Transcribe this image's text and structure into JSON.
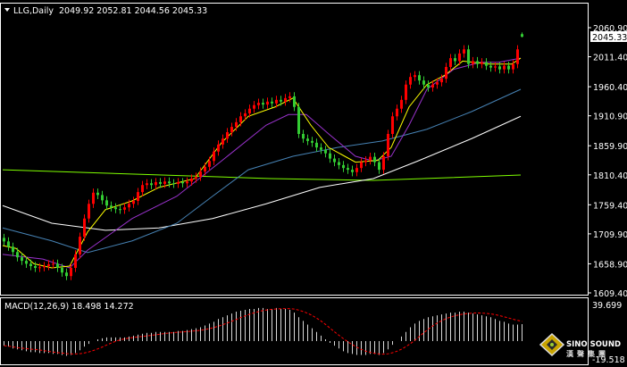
{
  "header": {
    "symbol_label": "LLG,Daily",
    "ohlc_text": "2049.92 2052.81 2044.56 2045.33"
  },
  "colors": {
    "background": "#000000",
    "bull_candle": "#ff0000",
    "bear_candle": "#33cc33",
    "frame": "#ffffff"
  },
  "chart_data": [
    {
      "type": "candlestick",
      "title": "LLG,Daily",
      "y_ticks": [
        "2060.90",
        "2011.40",
        "1960.40",
        "1910.90",
        "1859.90",
        "1810.40",
        "1759.40",
        "1709.90",
        "1658.90",
        "1609.40"
      ],
      "ylim": [
        1609.4,
        2060.9
      ],
      "current_price": "2045.33",
      "last_bar": {
        "open": 2049.92,
        "high": 2052.81,
        "low": 2044.56,
        "close": 2045.33
      },
      "close": [
        1697,
        1688,
        1679,
        1670,
        1664,
        1659,
        1655,
        1652,
        1653,
        1655,
        1658,
        1659,
        1652,
        1644,
        1638,
        1652,
        1675,
        1705,
        1736,
        1761,
        1780,
        1776,
        1767,
        1758,
        1755,
        1752,
        1751,
        1755,
        1761,
        1766,
        1781,
        1793,
        1796,
        1793,
        1798,
        1795,
        1799,
        1796,
        1795,
        1798,
        1796,
        1799,
        1804,
        1807,
        1816,
        1824,
        1834,
        1850,
        1862,
        1872,
        1883,
        1892,
        1900,
        1910,
        1915,
        1923,
        1929,
        1933,
        1930,
        1935,
        1932,
        1938,
        1935,
        1941,
        1944,
        1926,
        1880,
        1872,
        1868,
        1865,
        1857,
        1853,
        1847,
        1838,
        1832,
        1827,
        1822,
        1819,
        1815,
        1822,
        1832,
        1835,
        1841,
        1832,
        1819,
        1842,
        1880,
        1910,
        1923,
        1938,
        1964,
        1977,
        1980,
        1971,
        1964,
        1959,
        1964,
        1968,
        1974,
        1994,
        2009,
        2004,
        2017,
        2024,
        1999,
        2004,
        1999,
        2002,
        1996,
        1993,
        1995,
        1990,
        1996,
        1990,
        1999,
        2024,
        2045.33
      ],
      "moving_averages": [
        {
          "color": "#7fff00",
          "points": [
            [
              0,
              1819
            ],
            [
              60,
              1804
            ],
            [
              83,
              1801
            ],
            [
              116,
              1810
            ]
          ]
        },
        {
          "color": "#ffffff",
          "points": [
            [
              0,
              1758
            ],
            [
              11,
              1728
            ],
            [
              23,
              1716
            ],
            [
              35,
              1720
            ],
            [
              47,
              1736
            ],
            [
              59,
              1761
            ],
            [
              71,
              1789
            ],
            [
              83,
              1804
            ],
            [
              93,
              1834
            ],
            [
              105,
              1872
            ],
            [
              116,
              1910
            ]
          ]
        },
        {
          "color": "#4682b4",
          "points": [
            [
              0,
              1720
            ],
            [
              11,
              1698
            ],
            [
              19,
              1678
            ],
            [
              29,
              1698
            ],
            [
              39,
              1728
            ],
            [
              47,
              1774
            ],
            [
              55,
              1819
            ],
            [
              65,
              1842
            ],
            [
              75,
              1857
            ],
            [
              85,
              1868
            ],
            [
              95,
              1888
            ],
            [
              105,
              1918
            ],
            [
              116,
              1956
            ]
          ]
        },
        {
          "color": "#9932cc",
          "points": [
            [
              0,
              1675
            ],
            [
              9,
              1667
            ],
            [
              15,
              1652
            ],
            [
              19,
              1682
            ],
            [
              29,
              1736
            ],
            [
              39,
              1774
            ],
            [
              49,
              1834
            ],
            [
              59,
              1895
            ],
            [
              64,
              1913
            ],
            [
              68,
              1913
            ],
            [
              73,
              1880
            ],
            [
              79,
              1842
            ],
            [
              83,
              1834
            ],
            [
              87,
              1842
            ],
            [
              91,
              1895
            ],
            [
              95,
              1956
            ],
            [
              101,
              1990
            ],
            [
              107,
              2002
            ],
            [
              111,
              2002
            ],
            [
              116,
              2009
            ]
          ]
        },
        {
          "color": "#ffff00",
          "points": [
            [
              0,
              1690
            ],
            [
              3,
              1685
            ],
            [
              7,
              1659
            ],
            [
              11,
              1652
            ],
            [
              15,
              1655
            ],
            [
              19,
              1713
            ],
            [
              23,
              1751
            ],
            [
              29,
              1766
            ],
            [
              35,
              1789
            ],
            [
              43,
              1804
            ],
            [
              49,
              1865
            ],
            [
              55,
              1910
            ],
            [
              61,
              1926
            ],
            [
              65,
              1941
            ],
            [
              69,
              1895
            ],
            [
              73,
              1857
            ],
            [
              79,
              1832
            ],
            [
              84,
              1835
            ],
            [
              87,
              1857
            ],
            [
              91,
              1926
            ],
            [
              95,
              1964
            ],
            [
              99,
              1980
            ],
            [
              103,
              2004
            ],
            [
              109,
              1999
            ],
            [
              114,
              1999
            ],
            [
              116,
              2009
            ]
          ]
        }
      ]
    },
    {
      "type": "bar",
      "title": "MACD(12,26,9) 18.498 14.272",
      "y_ticks": [
        "39.699",
        "-19.518"
      ],
      "ylim": [
        -19.518,
        39.699
      ],
      "macd": [
        -5,
        -6,
        -8,
        -9,
        -10,
        -11,
        -12,
        -12,
        -13,
        -13,
        -13,
        -14,
        -14,
        -15,
        -16,
        -15,
        -13,
        -10,
        -6,
        -3,
        0,
        2,
        3,
        4,
        4,
        4,
        4,
        4,
        5,
        6,
        7,
        8,
        9,
        9,
        10,
        10,
        10,
        10,
        10,
        11,
        11,
        12,
        13,
        14,
        15,
        17,
        19,
        21,
        24,
        26,
        28,
        30,
        32,
        33,
        34,
        35,
        35,
        36,
        36,
        35,
        35,
        36,
        35,
        35,
        34,
        31,
        26,
        22,
        18,
        14,
        10,
        6,
        2,
        -2,
        -5,
        -8,
        -11,
        -13,
        -14,
        -15,
        -15,
        -15,
        -14,
        -14,
        -15,
        -13,
        -9,
        -4,
        0,
        5,
        10,
        15,
        19,
        22,
        24,
        26,
        27,
        28,
        29,
        30,
        31,
        31,
        32,
        32,
        31,
        30,
        29,
        28,
        27,
        26,
        24,
        22,
        21,
        19,
        18,
        18,
        18.498
      ],
      "signal_last": 14.272
    }
  ],
  "logo": {
    "name": "SINO SOUND",
    "chinese": "漢聲集團"
  }
}
